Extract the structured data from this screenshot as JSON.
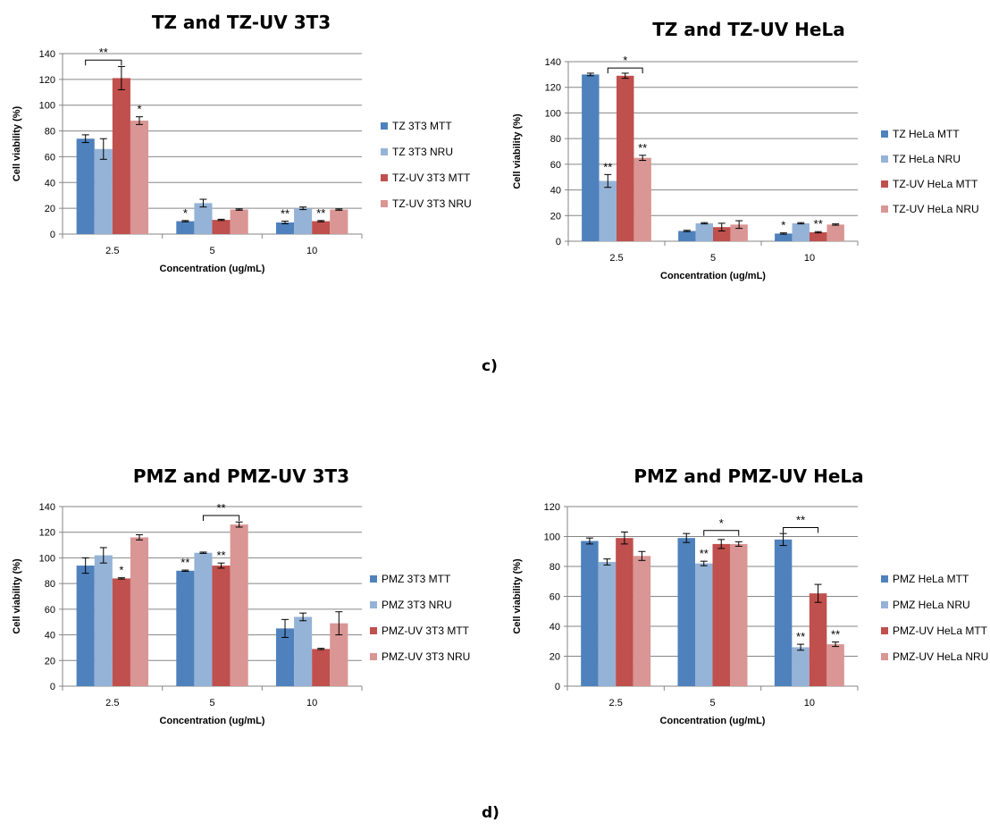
{
  "panel_labels": {
    "c": "c)",
    "d": "d)"
  },
  "chart_data": [
    {
      "type": "bar",
      "title": "TZ and TZ-UV  3T3",
      "xlabel": "Concentration (ug/mL)",
      "ylabel": "Cell viability (%)",
      "ylim": [
        0,
        140
      ],
      "ystep": 20,
      "grid": true,
      "legend": "right",
      "categories": [
        "2.5",
        "5",
        "10"
      ],
      "series": [
        {
          "name": "TZ 3T3 MTT",
          "color": "#4F81BD",
          "values": [
            74,
            10,
            9
          ],
          "errors": [
            3,
            0.5,
            1
          ]
        },
        {
          "name": "TZ 3T3 NRU",
          "color": "#95B3D7",
          "values": [
            66,
            24,
            20
          ],
          "errors": [
            8,
            3,
            1
          ]
        },
        {
          "name": "TZ-UV 3T3 MTT",
          "color": "#C0504D",
          "values": [
            121,
            11,
            10
          ],
          "errors": [
            9,
            0.5,
            0.5
          ]
        },
        {
          "name": "TZ-UV 3T3 NRU",
          "color": "#D99694",
          "values": [
            88,
            19,
            19
          ],
          "errors": [
            3,
            0.5,
            0.5
          ]
        }
      ],
      "annotations": [
        {
          "text": "*",
          "category": 0,
          "series": 3
        },
        {
          "text": "*",
          "category": 1,
          "series": 0
        },
        {
          "text": "**",
          "category": 2,
          "series": 0
        },
        {
          "text": "**",
          "category": 2,
          "series": 2
        }
      ],
      "brackets": [
        {
          "text": "**",
          "category": 0,
          "from": 0,
          "to": 2,
          "y": 135
        }
      ]
    },
    {
      "type": "bar",
      "title": "TZ and TZ-UV  HeLa",
      "xlabel": "Concentration (ug/mL)",
      "ylabel": "Cell viability (%)",
      "ylim": [
        0,
        140
      ],
      "ystep": 20,
      "grid": true,
      "legend": "right",
      "categories": [
        "2.5",
        "5",
        "10"
      ],
      "series": [
        {
          "name": "TZ HeLa MTT",
          "color": "#4F81BD",
          "values": [
            130,
            8,
            6
          ],
          "errors": [
            1,
            0.5,
            0.5
          ]
        },
        {
          "name": "TZ HeLa NRU",
          "color": "#95B3D7",
          "values": [
            47,
            14,
            14
          ],
          "errors": [
            5,
            0.5,
            0.5
          ]
        },
        {
          "name": "TZ-UV HeLa MTT",
          "color": "#C0504D",
          "values": [
            129,
            11,
            7
          ],
          "errors": [
            2,
            3,
            0.5
          ]
        },
        {
          "name": "TZ-UV HeLa NRU",
          "color": "#D99694",
          "values": [
            65,
            13,
            13
          ],
          "errors": [
            2,
            3,
            0.5
          ]
        }
      ],
      "annotations": [
        {
          "text": "**",
          "category": 0,
          "series": 1
        },
        {
          "text": "**",
          "category": 0,
          "series": 3
        },
        {
          "text": "*",
          "category": 2,
          "series": 0
        },
        {
          "text": "**",
          "category": 2,
          "series": 2
        }
      ],
      "brackets": [
        {
          "text": "*",
          "category": 0,
          "from": 1,
          "to": 3,
          "y": 135
        }
      ]
    },
    {
      "type": "bar",
      "title": "PMZ and PMZ-UV   3T3",
      "xlabel": "Concentration (ug/mL)",
      "ylabel": "Cell viability (%)",
      "ylim": [
        0,
        140
      ],
      "ystep": 20,
      "grid": true,
      "legend": "right",
      "categories": [
        "2.5",
        "5",
        "10"
      ],
      "series": [
        {
          "name": "PMZ 3T3 MTT",
          "color": "#4F81BD",
          "values": [
            94,
            90,
            45
          ],
          "errors": [
            6,
            0.5,
            7
          ]
        },
        {
          "name": "PMZ 3T3 NRU",
          "color": "#95B3D7",
          "values": [
            102,
            104,
            54
          ],
          "errors": [
            6,
            0.5,
            3
          ]
        },
        {
          "name": "PMZ-UV 3T3 MTT",
          "color": "#C0504D",
          "values": [
            84,
            94,
            29
          ],
          "errors": [
            0.5,
            2,
            0.5
          ]
        },
        {
          "name": "PMZ-UV 3T3 NRU",
          "color": "#D99694",
          "values": [
            116,
            126,
            49
          ],
          "errors": [
            2,
            2,
            9
          ]
        }
      ],
      "annotations": [
        {
          "text": "*",
          "category": 0,
          "series": 2
        },
        {
          "text": "**",
          "category": 1,
          "series": 0
        },
        {
          "text": "**",
          "category": 1,
          "series": 2
        }
      ],
      "brackets": [
        {
          "text": "**",
          "category": 1,
          "from": 1,
          "to": 3,
          "y": 133
        }
      ]
    },
    {
      "type": "bar",
      "title": "PMZ and PMZ-UV  HeLa",
      "xlabel": "Concentration (ug/mL)",
      "ylabel": "Cell viability (%)",
      "ylim": [
        0,
        120
      ],
      "ystep": 20,
      "grid": true,
      "legend": "right",
      "categories": [
        "2.5",
        "5",
        "10"
      ],
      "series": [
        {
          "name": "PMZ HeLa MTT",
          "color": "#4F81BD",
          "values": [
            97,
            99,
            98
          ],
          "errors": [
            2,
            3,
            4
          ]
        },
        {
          "name": "PMZ HeLa NRU",
          "color": "#95B3D7",
          "values": [
            83,
            82,
            26
          ],
          "errors": [
            2,
            1.5,
            2
          ]
        },
        {
          "name": "PMZ-UV HeLa MTT",
          "color": "#C0504D",
          "values": [
            99,
            95,
            62
          ],
          "errors": [
            4,
            3,
            6
          ]
        },
        {
          "name": "PMZ-UV HeLa NRU",
          "color": "#D99694",
          "values": [
            87,
            95,
            28
          ],
          "errors": [
            3,
            1.5,
            1.5
          ]
        }
      ],
      "annotations": [
        {
          "text": "**",
          "category": 1,
          "series": 1
        },
        {
          "text": "**",
          "category": 2,
          "series": 1
        },
        {
          "text": "**",
          "category": 2,
          "series": 3
        }
      ],
      "brackets": [
        {
          "text": "*",
          "category": 1,
          "from": 1,
          "to": 3,
          "y": 104
        },
        {
          "text": "**",
          "category": 2,
          "from": 0,
          "to": 2,
          "y": 106
        }
      ]
    }
  ]
}
